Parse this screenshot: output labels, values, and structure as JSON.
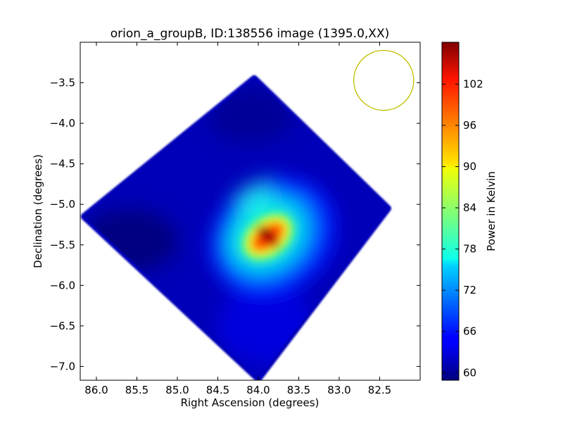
{
  "chart_data": {
    "type": "heatmap",
    "title": "orion_a_groupB, ID:138556 image (1395.0,XX)",
    "xlabel": "Right Ascension (degrees)",
    "ylabel": "Declination (degrees)",
    "xlim": [
      86.2,
      82.0
    ],
    "ylim": [
      -7.17,
      -3.0
    ],
    "x_ticks": [
      86.0,
      85.5,
      85.0,
      84.5,
      84.0,
      83.5,
      83.0,
      82.5
    ],
    "x_tick_labels": [
      "86.0",
      "85.5",
      "85.0",
      "84.5",
      "84.0",
      "83.5",
      "83.0",
      "82.5"
    ],
    "y_ticks": [
      -3.5,
      -4.0,
      -4.5,
      -5.0,
      -5.5,
      -6.0,
      -6.5,
      -7.0
    ],
    "y_tick_labels": [
      "−3.5",
      "−4.0",
      "−4.5",
      "−5.0",
      "−5.5",
      "−6.0",
      "−6.5",
      "−7.0"
    ],
    "grid": false,
    "colormap": "jet",
    "colorbar": {
      "label": "Power in Kelvin",
      "range": [
        58.9,
        108.1
      ],
      "ticks": [
        60,
        66,
        72,
        78,
        84,
        90,
        96,
        102
      ],
      "tick_labels": [
        "60",
        "66",
        "72",
        "78",
        "84",
        "90",
        "96",
        "102"
      ]
    },
    "map_footprint": {
      "shape": "rotated square",
      "corners": [
        {
          "ra": 84.05,
          "dec": -3.45
        },
        {
          "ra": 82.4,
          "dec": -5.05
        },
        {
          "ra": 84.0,
          "dec": -7.15
        },
        {
          "ra": 86.15,
          "dec": -5.15
        }
      ]
    },
    "peak": {
      "ra": 83.88,
      "dec": -5.4,
      "value": 108.1
    },
    "beam_circle": {
      "ra": 82.45,
      "dec": -3.47,
      "radius_deg": 0.37,
      "color": "#bfbf00"
    }
  }
}
